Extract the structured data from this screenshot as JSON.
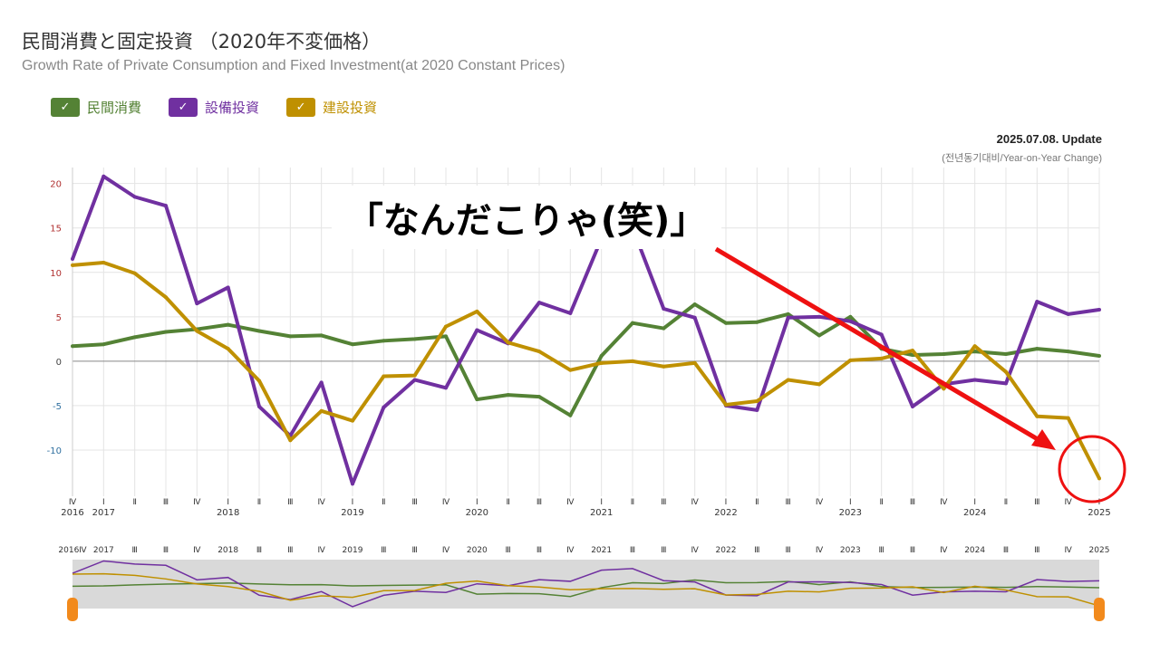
{
  "title": "民間消費と固定投資 （2020年不変価格）",
  "subtitle": "Growth Rate of Private Consumption and Fixed Investment(at 2020 Constant Prices)",
  "update": "2025.07.08. Update",
  "yoy_note": "(전년동기대비/Year-on-Year Change)",
  "callout": "「なんだこりゃ(笑)」",
  "colors": {
    "consumption": "#548235",
    "equipment": "#7030a0",
    "construction": "#bf9000",
    "annotation": "#ee1111",
    "navigator_bg": "#d9d9d9",
    "handle": "#f28a1c"
  },
  "chart_data": {
    "type": "line",
    "title": "民間消費と固定投資 （2020年不変価格）",
    "ylabel": "Year-on-Year Change (%)",
    "ylim": [
      -15.2,
      21.8
    ],
    "yticks": [
      20,
      15,
      10,
      5,
      0,
      -5,
      -10
    ],
    "grid": true,
    "legend_position": "top-left",
    "quarters": [
      "Ⅳ",
      "Ⅰ",
      "Ⅱ",
      "Ⅲ",
      "Ⅳ",
      "Ⅰ",
      "Ⅱ",
      "Ⅲ",
      "Ⅳ",
      "Ⅰ",
      "Ⅱ",
      "Ⅲ",
      "Ⅳ",
      "Ⅰ",
      "Ⅱ",
      "Ⅲ",
      "Ⅳ",
      "Ⅰ",
      "Ⅱ",
      "Ⅲ",
      "Ⅳ",
      "Ⅰ",
      "Ⅱ",
      "Ⅲ",
      "Ⅳ",
      "Ⅰ",
      "Ⅱ",
      "Ⅲ",
      "Ⅳ",
      "Ⅰ",
      "Ⅱ",
      "Ⅲ",
      "Ⅳ",
      "Ⅰ"
    ],
    "years": [
      "2016",
      "2017",
      "",
      "",
      "",
      "2018",
      "",
      "",
      "",
      "2019",
      "",
      "",
      "",
      "2020",
      "",
      "",
      "",
      "2021",
      "",
      "",
      "",
      "2022",
      "",
      "",
      "",
      "2023",
      "",
      "",
      "",
      "2024",
      "",
      "",
      "",
      "2025"
    ],
    "navigator_labels": [
      "2016Ⅳ",
      "2017",
      "Ⅲ",
      "Ⅲ",
      "Ⅳ",
      "2018",
      "Ⅲ",
      "Ⅲ",
      "Ⅳ",
      "2019",
      "Ⅲ",
      "Ⅲ",
      "Ⅳ",
      "2020",
      "Ⅲ",
      "Ⅲ",
      "Ⅳ",
      "2021",
      "Ⅲ",
      "Ⅲ",
      "Ⅳ",
      "2022",
      "Ⅲ",
      "Ⅲ",
      "Ⅳ",
      "2023",
      "Ⅲ",
      "Ⅲ",
      "Ⅳ",
      "2024",
      "Ⅲ",
      "Ⅲ",
      "Ⅳ",
      "2025"
    ],
    "series": [
      {
        "name": "民間消費",
        "key": "consumption",
        "values": [
          1.7,
          1.9,
          2.7,
          3.3,
          3.6,
          4.1,
          3.4,
          2.8,
          2.9,
          1.9,
          2.3,
          2.5,
          2.8,
          -4.3,
          -3.8,
          -4.0,
          -6.1,
          0.6,
          4.3,
          3.7,
          6.4,
          4.3,
          4.4,
          5.3,
          2.9,
          5.0,
          1.4,
          0.7,
          0.8,
          1.1,
          0.8,
          1.4,
          1.1,
          0.6
        ]
      },
      {
        "name": "設備投資",
        "key": "equipment",
        "values": [
          11.5,
          20.8,
          18.5,
          17.5,
          6.5,
          8.3,
          -5.1,
          -8.4,
          -2.4,
          -13.8,
          -5.2,
          -2.1,
          -3.0,
          3.5,
          2.0,
          6.6,
          5.4,
          13.8,
          15.0,
          5.9,
          4.9,
          -5.0,
          -5.5,
          4.9,
          5.0,
          4.5,
          3.0,
          -5.1,
          -2.6,
          -2.1,
          -2.5,
          6.7,
          5.3,
          5.8
        ]
      },
      {
        "name": "建設投資",
        "key": "construction",
        "values": [
          10.8,
          11.1,
          9.9,
          7.2,
          3.4,
          1.4,
          -2.2,
          -8.9,
          -5.6,
          -6.7,
          -1.7,
          -1.6,
          3.9,
          5.6,
          2.1,
          1.1,
          -1.0,
          -0.2,
          0.0,
          -0.6,
          -0.2,
          -4.9,
          -4.5,
          -2.1,
          -2.6,
          0.1,
          0.3,
          1.2,
          -3.1,
          1.7,
          -1.2,
          -6.2,
          -6.4,
          -13.2
        ]
      }
    ]
  }
}
